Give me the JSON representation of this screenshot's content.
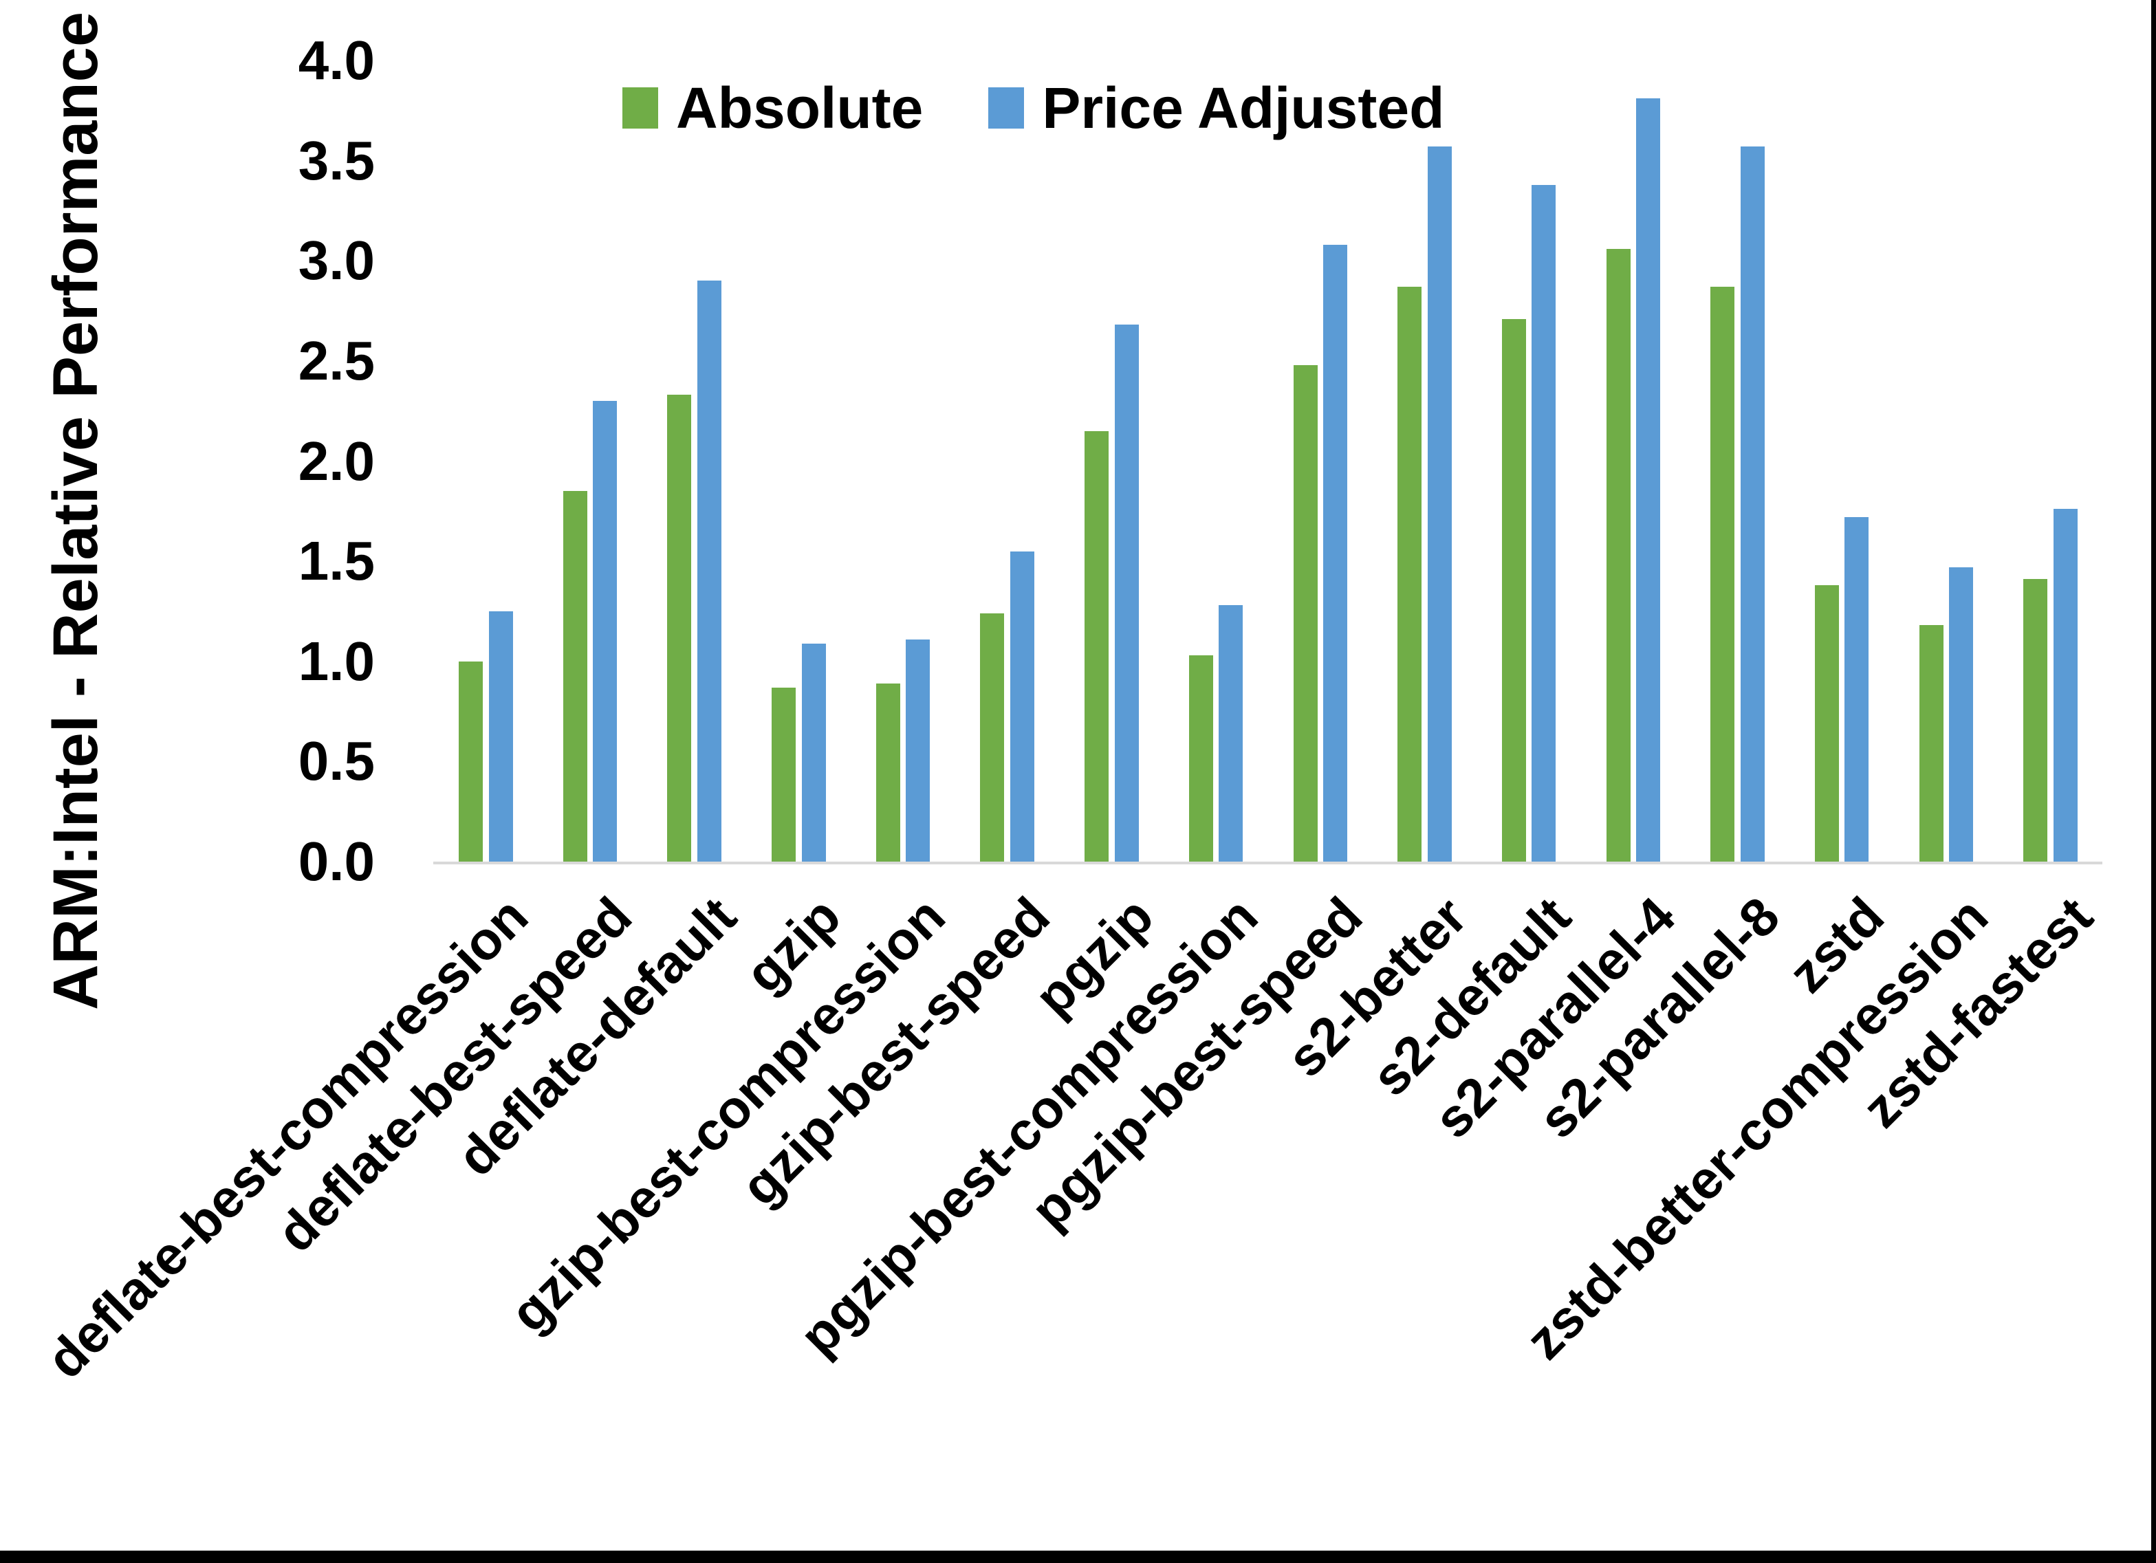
{
  "chart_data": {
    "type": "bar",
    "title": "",
    "xlabel": "",
    "ylabel": "ARM:Intel - Relative Performance",
    "ylim": [
      0,
      4
    ],
    "ytick_step": 0.5,
    "ytick_labels": [
      "0.0",
      "0.5",
      "1.0",
      "1.5",
      "2.0",
      "2.5",
      "3.0",
      "3.5",
      "4.0"
    ],
    "grid": false,
    "legend_position": "top-center",
    "categories": [
      "deflate-best-compression",
      "deflate-best-speed",
      "deflate-default",
      "gzip",
      "gzip-best-compression",
      "gzip-best-speed",
      "pgzip",
      "pgzip-best-compression",
      "pgzip-best-speed",
      "s2-better",
      "s2-default",
      "s2-parallel-4",
      "s2-parallel-8",
      "zstd",
      "zstd-better-compression",
      "zstd-fastest"
    ],
    "series": [
      {
        "name": "Absolute",
        "color": "#70AD47",
        "values": [
          1.0,
          1.85,
          2.33,
          0.87,
          0.89,
          1.24,
          2.15,
          1.03,
          2.48,
          2.87,
          2.71,
          3.06,
          2.87,
          1.38,
          1.18,
          1.41
        ]
      },
      {
        "name": "Price Adjusted",
        "color": "#5B9BD5",
        "values": [
          1.25,
          2.3,
          2.9,
          1.09,
          1.11,
          1.55,
          2.68,
          1.28,
          3.08,
          3.57,
          3.38,
          3.81,
          3.57,
          1.72,
          1.47,
          1.76
        ]
      }
    ],
    "axis_line_color": "#D9D9D9",
    "frame_border_color": "#000000"
  }
}
